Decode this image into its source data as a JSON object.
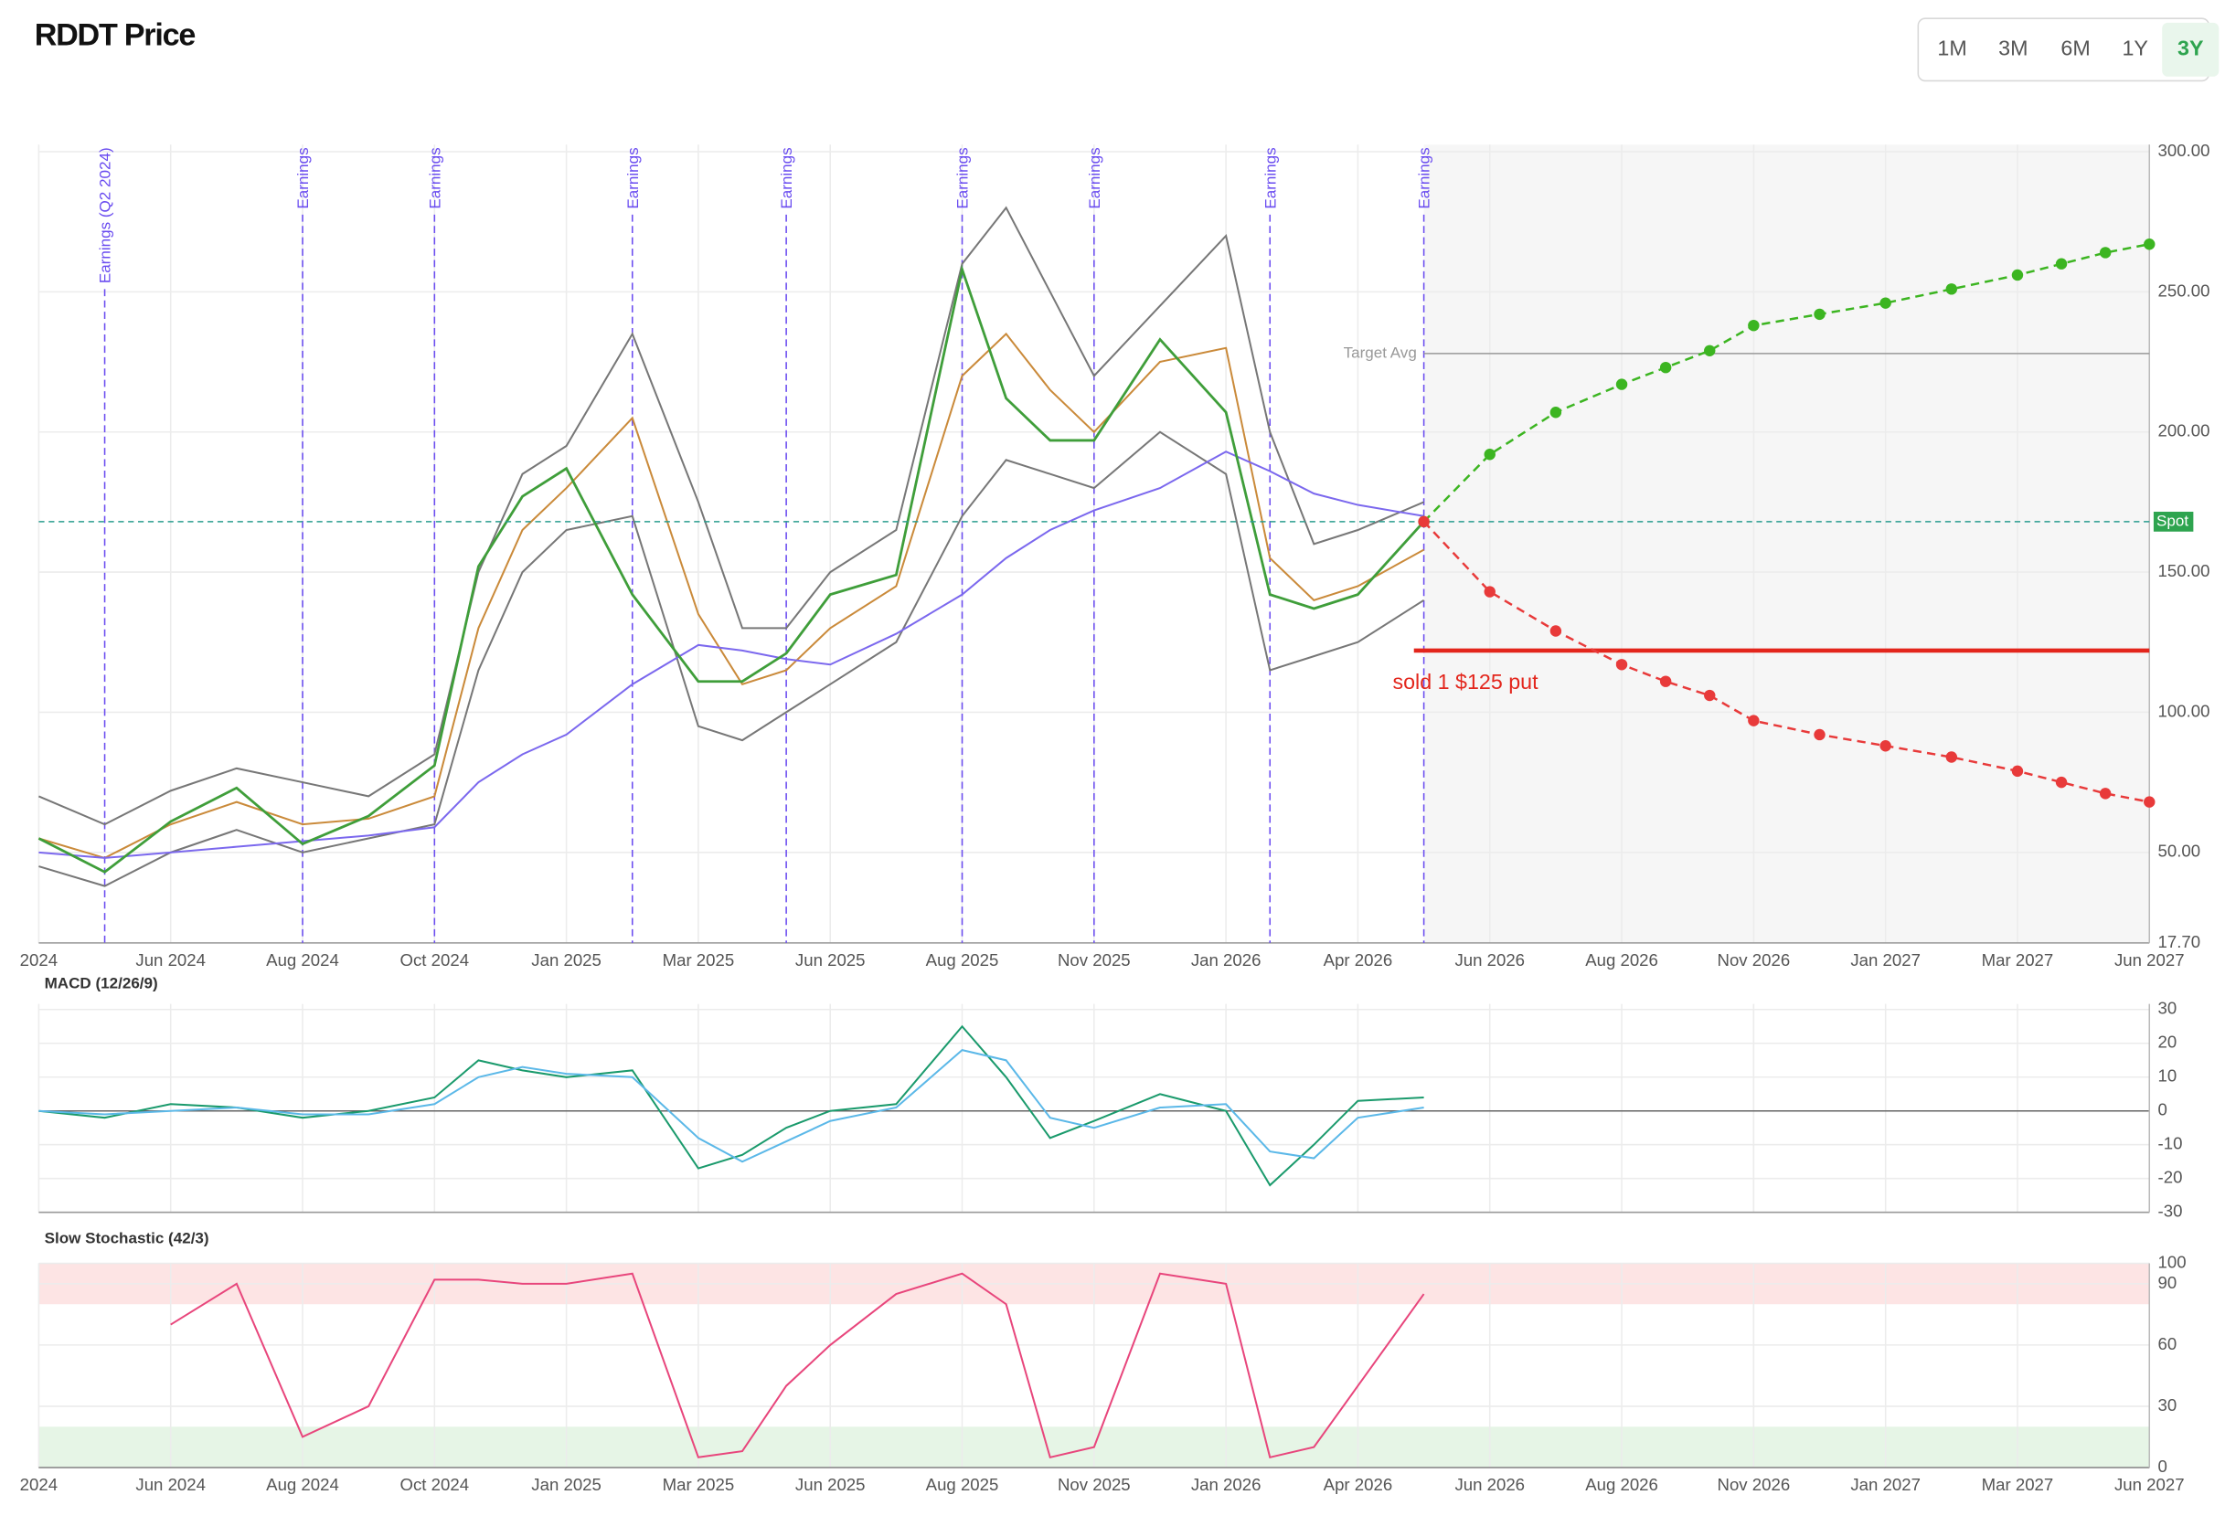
{
  "header": {
    "title": "RDDT Price",
    "range_buttons": [
      "1M",
      "3M",
      "6M",
      "1Y",
      "3Y"
    ],
    "selected": "3Y"
  },
  "chart_data": [
    {
      "type": "line",
      "x": [
        "2024-04",
        "2024-05",
        "2024-06",
        "2024-07",
        "2024-08",
        "2024-09",
        "2024-10",
        "2024-11",
        "2024-12",
        "2025-01",
        "2025-02",
        "2025-03",
        "2025-04",
        "2025-05",
        "2025-06",
        "2025-07",
        "2025-08",
        "2025-09",
        "2025-10",
        "2025-11",
        "2025-12",
        "2026-01",
        "2026-02",
        "2026-03",
        "2026-04",
        "2026-05"
      ],
      "series": [
        {
          "color": "#ca8a3a",
          "values": [
            55,
            48,
            60,
            68,
            60,
            62,
            70,
            130,
            165,
            180,
            205,
            135,
            110,
            115,
            130,
            145,
            220,
            235,
            215,
            200,
            225,
            230,
            155,
            140,
            145,
            158
          ]
        },
        {
          "color": "#777777",
          "values": [
            70,
            60,
            72,
            80,
            75,
            70,
            85,
            150,
            185,
            195,
            235,
            175,
            130,
            130,
            150,
            165,
            260,
            280,
            250,
            220,
            245,
            270,
            200,
            160,
            165,
            175
          ]
        },
        {
          "color": "#777777",
          "values": [
            45,
            38,
            50,
            58,
            50,
            55,
            60,
            115,
            150,
            165,
            170,
            95,
            90,
            100,
            110,
            125,
            170,
            190,
            185,
            180,
            200,
            185,
            115,
            120,
            125,
            140
          ]
        },
        {
          "color": "#7b68ee",
          "values": [
            50,
            48,
            50,
            52,
            54,
            56,
            59,
            75,
            85,
            92,
            110,
            124,
            122,
            119,
            117,
            128,
            142,
            155,
            165,
            172,
            180,
            193,
            186,
            178,
            174,
            170
          ]
        },
        {
          "color": "#3f9e3a",
          "values": [
            55,
            43,
            61,
            73,
            53,
            63,
            81,
            152,
            177,
            187,
            142,
            111,
            111,
            121,
            142,
            149,
            258,
            212,
            197,
            197,
            233,
            207,
            142,
            137,
            142,
            168
          ]
        }
      ],
      "xlim": [
        "2024-04",
        "2027-06"
      ],
      "xticks": [
        {
          "value": "2024-04",
          "label": "2024"
        },
        {
          "value": "2024-06",
          "label": "Jun 2024"
        },
        {
          "value": "2024-08",
          "label": "Aug 2024"
        },
        {
          "value": "2024-10",
          "label": "Oct 2024"
        },
        {
          "value": "2025-01",
          "label": "Jan 2025"
        },
        {
          "value": "2025-03",
          "label": "Mar 2025"
        },
        {
          "value": "2025-06",
          "label": "Jun 2025"
        },
        {
          "value": "2025-08",
          "label": "Aug 2025"
        },
        {
          "value": "2025-11",
          "label": "Nov 2025"
        },
        {
          "value": "2026-01",
          "label": "Jan 2026"
        },
        {
          "value": "2026-04",
          "label": "Apr 2026"
        },
        {
          "value": "2026-06",
          "label": "Jun 2026"
        },
        {
          "value": "2026-08",
          "label": "Aug 2026"
        },
        {
          "value": "2026-11",
          "label": "Nov 2026"
        },
        {
          "value": "2027-01",
          "label": "Jan 2027"
        },
        {
          "value": "2027-03",
          "label": "Mar 2027"
        },
        {
          "value": "2027-06",
          "label": "Jun 2027"
        }
      ],
      "ylim": [
        17.7,
        300
      ],
      "yticks": [
        {
          "value": 17.7,
          "label": "17.70"
        },
        {
          "value": 50,
          "label": "50.00"
        },
        {
          "value": 100,
          "label": "100.00"
        },
        {
          "value": 150,
          "label": "150.00"
        },
        {
          "value": 200,
          "label": "200.00"
        },
        {
          "value": 250,
          "label": "250.00"
        },
        {
          "value": 300,
          "label": "300.00"
        }
      ],
      "grid": true,
      "earnings": [
        {
          "x": "2024-05",
          "label": "Earnings (Q2 2024)"
        },
        {
          "x": "2024-08",
          "label": "Earnings"
        },
        {
          "x": "2024-10",
          "label": "Earnings"
        },
        {
          "x": "2025-02",
          "label": "Earnings"
        },
        {
          "x": "2025-05",
          "label": "Earnings"
        },
        {
          "x": "2025-08",
          "label": "Earnings"
        },
        {
          "x": "2025-11",
          "label": "Earnings"
        },
        {
          "x": "2026-02",
          "label": "Earnings"
        },
        {
          "x": "2026-05",
          "label": "Earnings"
        }
      ],
      "target": {
        "value": 228,
        "label": "Target Avg"
      },
      "spot": {
        "value": 168,
        "label": "Spot"
      },
      "put": {
        "x": "2026-05",
        "value": 122,
        "label": "sold 1 $125 put"
      },
      "projection": {
        "x": [
          "2026-05",
          "2026-06",
          "2026-07",
          "2026-08",
          "2026-09",
          "2026-10",
          "2026-11",
          "2026-12",
          "2027-01",
          "2027-02",
          "2027-03",
          "2027-04",
          "2027-05",
          "2027-06"
        ],
        "series": [
          {
            "color": "#3cb521",
            "values": [
              168,
              192,
              207,
              217,
              223,
              229,
              238,
              242,
              246,
              251,
              256,
              260,
              264,
              267
            ]
          },
          {
            "color": "#e83a3a",
            "values": [
              168,
              143,
              129,
              117,
              111,
              106,
              97,
              92,
              88,
              84,
              79,
              75,
              71,
              68
            ]
          }
        ]
      }
    },
    {
      "type": "line",
      "title": "MACD (12/26/9)",
      "x": [
        "2024-04",
        "2024-05",
        "2024-06",
        "2024-07",
        "2024-08",
        "2024-09",
        "2024-10",
        "2024-11",
        "2024-12",
        "2025-01",
        "2025-02",
        "2025-03",
        "2025-04",
        "2025-05",
        "2025-06",
        "2025-07",
        "2025-08",
        "2025-09",
        "2025-10",
        "2025-11",
        "2025-12",
        "2026-01",
        "2026-02",
        "2026-03",
        "2026-04",
        "2026-05"
      ],
      "series": [
        {
          "color": "#1a9a6c",
          "values": [
            0,
            -2,
            2,
            1,
            -2,
            0,
            4,
            15,
            12,
            10,
            12,
            -17,
            -13,
            -5,
            0,
            2,
            25,
            10,
            -8,
            -3,
            5,
            0,
            -22,
            -10,
            3,
            4
          ]
        },
        {
          "color": "#5bb8e8",
          "values": [
            0,
            -1,
            0,
            1,
            -1,
            -1,
            2,
            10,
            13,
            11,
            10,
            -8,
            -15,
            -9,
            -3,
            1,
            18,
            15,
            -2,
            -5,
            1,
            2,
            -12,
            -14,
            -2,
            1
          ]
        }
      ],
      "xlim": [
        "2024-04",
        "2027-06"
      ],
      "xticks": [
        {
          "value": "2024-04",
          "label": "2024"
        },
        {
          "value": "2024-06",
          "label": "Jun 2024"
        },
        {
          "value": "2024-08",
          "label": "Aug 2024"
        },
        {
          "value": "2024-10",
          "label": "Oct 2024"
        },
        {
          "value": "2025-01",
          "label": "Jan 2025"
        },
        {
          "value": "2025-03",
          "label": "Mar 2025"
        },
        {
          "value": "2025-06",
          "label": "Jun 2025"
        },
        {
          "value": "2025-08",
          "label": "Aug 2025"
        },
        {
          "value": "2025-11",
          "label": "Nov 2025"
        },
        {
          "value": "2026-01",
          "label": "Jan 2026"
        },
        {
          "value": "2026-04",
          "label": "Apr 2026"
        },
        {
          "value": "2026-06",
          "label": "Jun 2026"
        },
        {
          "value": "2026-08",
          "label": "Aug 2026"
        },
        {
          "value": "2026-11",
          "label": "Nov 2026"
        },
        {
          "value": "2027-01",
          "label": "Jan 2027"
        },
        {
          "value": "2027-03",
          "label": "Mar 2027"
        },
        {
          "value": "2027-06",
          "label": "Jun 2027"
        }
      ],
      "ylim": [
        -30,
        30
      ],
      "yticks": [
        -30,
        -20,
        -10,
        0,
        10,
        20,
        30
      ],
      "grid": true
    },
    {
      "type": "line",
      "title": "Slow Stochastic (42/3)",
      "x": [
        "2024-04",
        "2024-05",
        "2024-06",
        "2024-07",
        "2024-08",
        "2024-09",
        "2024-10",
        "2024-11",
        "2024-12",
        "2025-01",
        "2025-02",
        "2025-03",
        "2025-04",
        "2025-05",
        "2025-06",
        "2025-07",
        "2025-08",
        "2025-09",
        "2025-10",
        "2025-11",
        "2025-12",
        "2026-01",
        "2026-02",
        "2026-03",
        "2026-04",
        "2026-05"
      ],
      "series": [
        {
          "color": "#e8467c",
          "values": [
            null,
            null,
            70,
            90,
            15,
            30,
            92,
            92,
            90,
            90,
            95,
            5,
            8,
            40,
            60,
            85,
            95,
            80,
            5,
            10,
            95,
            90,
            5,
            10,
            40,
            85
          ]
        }
      ],
      "bands": [
        {
          "from": 80,
          "to": 100,
          "color": "#fde4e4"
        },
        {
          "from": 0,
          "to": 20,
          "color": "#e6f5e6"
        }
      ],
      "xlim": [
        "2024-04",
        "2027-06"
      ],
      "xticks": [
        {
          "value": "2024-04",
          "label": "2024"
        },
        {
          "value": "2024-06",
          "label": "Jun 2024"
        },
        {
          "value": "2024-08",
          "label": "Aug 2024"
        },
        {
          "value": "2024-10",
          "label": "Oct 2024"
        },
        {
          "value": "2025-01",
          "label": "Jan 2025"
        },
        {
          "value": "2025-03",
          "label": "Mar 2025"
        },
        {
          "value": "2025-06",
          "label": "Jun 2025"
        },
        {
          "value": "2025-08",
          "label": "Aug 2025"
        },
        {
          "value": "2025-11",
          "label": "Nov 2025"
        },
        {
          "value": "2026-01",
          "label": "Jan 2026"
        },
        {
          "value": "2026-04",
          "label": "Apr 2026"
        },
        {
          "value": "2026-06",
          "label": "Jun 2026"
        },
        {
          "value": "2026-08",
          "label": "Aug 2026"
        },
        {
          "value": "2026-11",
          "label": "Nov 2026"
        },
        {
          "value": "2027-01",
          "label": "Jan 2027"
        },
        {
          "value": "2027-03",
          "label": "Mar 2027"
        },
        {
          "value": "2027-06",
          "label": "Jun 2027"
        }
      ],
      "ylim": [
        0,
        100
      ],
      "yticks": [
        0,
        30,
        60,
        90,
        100
      ],
      "grid": true
    }
  ]
}
